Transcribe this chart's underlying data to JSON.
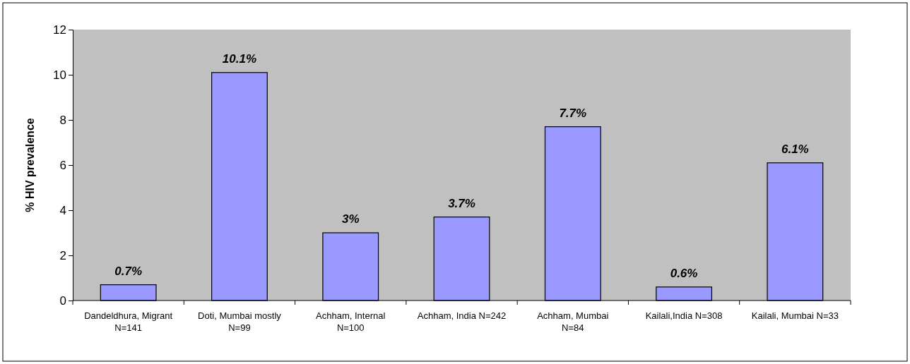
{
  "chart_data": {
    "type": "bar",
    "ylabel": "% HIV prevalence",
    "categories": [
      "Dandeldhura, Migrant N=141",
      "Doti, Mumbai mostly N=99",
      "Achham,  Internal N=100",
      "Achham,  India N=242",
      "Achham,  Mumbai N=84",
      "Kailali,India N=308",
      "Kailali, Mumbai N=33"
    ],
    "values": [
      0.7,
      10.1,
      3,
      3.7,
      7.7,
      0.6,
      6.1
    ],
    "value_labels": [
      "0.7%",
      "10.1%",
      "3%",
      "3.7%",
      "7.7%",
      "0.6%",
      "6.1%"
    ],
    "color": "#9999ff",
    "ylim": [
      0,
      12
    ],
    "yticks": [
      0,
      2,
      4,
      6,
      8,
      10,
      12
    ],
    "grid": false
  }
}
